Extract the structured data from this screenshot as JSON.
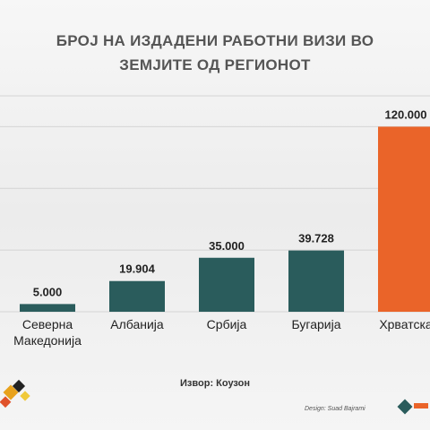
{
  "chart_data": {
    "type": "bar",
    "title": "БРОЈ НА ИЗДАДЕНИ РАБОТНИ ВИЗИ ВО ЗЕМЈИТЕ ОД РЕГИОНОТ",
    "categories": [
      "Северна Македонија",
      "Албанија",
      "Србија",
      "Бугарија",
      "Хрватска"
    ],
    "values": [
      5000,
      19904,
      35000,
      39728,
      120000
    ],
    "value_labels": [
      "5.000",
      "19.904",
      "35.000",
      "39.728",
      "120.000"
    ],
    "colors": [
      "#2a5c5c",
      "#2a5c5c",
      "#2a5c5c",
      "#2a5c5c",
      "#ea6429"
    ],
    "ylim": [
      0,
      140000
    ],
    "yticks": [
      0,
      40000,
      80000,
      120000,
      140000
    ],
    "grid": true,
    "source": "Извор: Коузон",
    "credit": "Design: Suad Bajrami"
  }
}
